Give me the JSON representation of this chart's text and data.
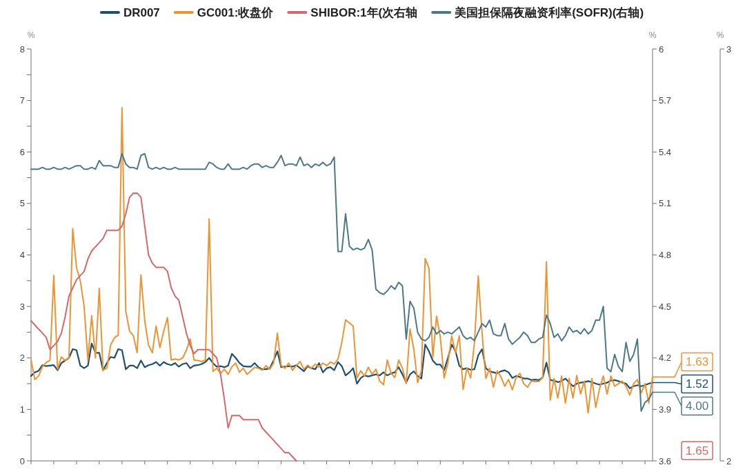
{
  "chart_data": {
    "type": "line",
    "legend": "top",
    "categories": [
      null,
      null,
      null,
      null,
      null,
      null,
      null,
      null,
      null,
      null,
      null,
      null,
      null,
      null,
      null,
      null,
      null,
      null,
      null,
      null,
      null,
      null,
      null,
      null,
      null,
      null,
      null,
      null,
      null,
      null,
      null,
      null,
      null,
      null,
      null,
      null,
      null,
      null,
      null,
      null,
      null,
      null,
      null,
      null,
      null,
      null,
      null,
      null,
      null,
      null,
      null,
      null,
      null,
      null,
      null,
      null,
      null,
      null,
      null,
      null,
      null,
      null,
      null,
      null,
      null,
      null,
      null,
      null,
      null,
      null,
      null,
      null,
      null,
      null,
      null,
      null,
      null,
      null,
      null,
      null,
      null,
      null,
      null,
      null,
      null,
      null,
      null,
      null,
      null,
      null,
      null,
      null,
      null,
      null,
      null,
      null,
      null,
      null,
      null,
      null,
      null,
      null,
      null,
      null,
      null,
      null,
      null,
      null,
      null,
      null,
      null,
      null,
      null,
      null,
      null,
      null,
      null,
      null,
      null,
      null,
      null,
      null,
      null,
      null,
      null,
      null,
      null,
      null,
      null,
      null,
      null,
      null,
      null,
      null,
      null,
      null,
      null,
      null,
      null,
      null,
      null,
      null,
      null,
      null,
      null,
      null,
      null,
      null,
      null,
      null,
      null,
      null,
      null,
      null,
      null,
      null,
      null,
      null,
      null,
      null,
      null,
      null,
      null,
      null,
      null
    ],
    "ylabel": "%",
    "y2label": "%",
    "y3label": "%",
    "ylim": [
      0,
      8
    ],
    "yticks": [
      0,
      {
        "value": 0.5,
        "label": null
      },
      1,
      {
        "value": 1.5,
        "label": null
      },
      2,
      {
        "value": 2.5,
        "label": null
      },
      3,
      {
        "value": 3.5,
        "label": null
      },
      4,
      {
        "value": 4.5,
        "label": null
      },
      5,
      {
        "value": 5.5,
        "label": null
      },
      6,
      {
        "value": 6.5,
        "label": null
      },
      7,
      {
        "value": 7.5,
        "label": null
      },
      8
    ],
    "y2lim": [
      3.6,
      6
    ],
    "y2ticks": [
      3.6,
      3.9,
      4.2,
      4.5,
      4.8,
      5.1,
      5.4,
      5.7,
      6
    ],
    "y3lim": [
      2,
      3
    ],
    "y3ticks": [
      2,
      3
    ],
    "annotations": [
      "1.65"
    ],
    "series": [
      {
        "name": "DR007",
        "color": "#1f4e6e",
        "values": [
          1.65,
          1.72,
          1.75,
          1.86,
          1.84,
          1.85,
          1.86,
          1.76,
          1.9,
          1.95,
          2.0,
          2.17,
          2.15,
          1.85,
          1.8,
          1.85,
          2.28,
          2.1,
          2.1,
          1.76,
          1.9,
          2.02,
          2.0,
          2.17,
          2.15,
          1.78,
          1.85,
          1.85,
          1.8,
          1.95,
          1.82,
          1.86,
          1.88,
          1.92,
          1.85,
          1.92,
          1.88,
          1.86,
          1.9,
          1.83,
          1.88,
          1.9,
          1.8,
          1.85,
          1.86,
          1.88,
          1.92,
          2.0,
          1.9,
          1.83,
          1.84,
          1.82,
          1.85,
          2.08,
          2.0,
          1.9,
          1.84,
          1.83,
          1.83,
          1.9,
          1.82,
          1.78,
          1.78,
          1.8,
          1.95,
          2.13,
          1.82,
          1.83,
          1.84,
          1.83,
          1.86,
          1.8,
          1.74,
          1.84,
          1.8,
          1.78,
          1.9,
          1.72,
          1.8,
          1.82,
          1.76,
          1.92,
          1.84,
          1.66,
          1.72,
          1.8,
          1.5,
          1.61,
          1.66,
          1.64,
          1.66,
          1.68,
          1.66,
          1.72,
          1.66,
          1.7,
          1.72,
          1.82,
          1.68,
          1.52,
          1.68,
          1.74,
          1.65,
          1.6,
          2.26,
          2.13,
          1.95,
          1.87,
          1.87,
          1.76,
          2.0,
          2.26,
          2.13,
          1.85,
          1.78,
          1.8,
          1.77,
          1.78,
          2.05,
          2.17,
          1.8,
          1.74,
          1.72,
          1.7,
          1.74,
          1.76,
          1.72,
          1.61,
          1.65,
          1.63,
          1.6,
          1.6,
          1.57,
          1.58,
          1.57,
          1.62,
          1.91,
          1.57,
          1.56,
          1.53,
          1.55,
          1.6,
          1.52,
          1.45,
          1.5,
          1.52,
          1.53,
          1.55,
          1.53,
          1.5,
          1.48,
          1.5,
          1.52,
          1.56,
          1.57,
          1.55,
          1.52,
          1.5,
          1.41,
          1.45,
          1.47,
          1.45,
          1.47,
          1.5,
          1.52
        ],
        "value_labels": [
          null,
          null,
          null,
          null,
          null,
          null,
          null,
          null,
          null,
          null,
          null,
          null,
          null,
          null,
          null,
          null,
          null,
          null,
          null,
          null,
          null,
          null,
          null,
          null,
          null,
          null,
          null,
          null,
          null,
          null,
          null,
          null,
          null,
          null,
          null,
          null,
          null,
          null,
          null,
          null,
          null,
          null,
          null,
          null,
          null,
          null,
          null,
          null,
          null,
          null,
          null,
          null,
          null,
          null,
          null,
          null,
          null,
          null,
          null,
          null,
          null,
          null,
          null,
          null,
          null,
          null,
          null,
          null,
          null,
          null,
          null,
          null,
          null,
          null,
          null,
          null,
          null,
          null,
          null,
          null,
          null,
          null,
          null,
          null,
          null,
          null,
          null,
          null,
          null,
          null,
          null,
          null,
          null,
          null,
          null,
          null,
          null,
          null,
          null,
          null,
          null,
          null,
          null,
          null,
          null,
          null,
          null,
          null,
          null,
          null,
          null,
          null,
          null,
          null,
          null,
          null,
          null,
          null,
          null,
          null,
          null,
          null,
          null,
          null,
          null,
          null,
          null,
          null,
          null,
          null,
          null,
          null,
          null,
          null,
          null,
          null,
          null,
          null,
          null,
          null,
          null,
          null,
          null,
          null,
          null,
          null,
          null,
          null,
          null,
          null,
          null,
          null,
          null,
          null,
          null,
          null,
          null,
          null,
          null,
          null,
          null,
          null,
          null,
          null,
          "1.52"
        ]
      },
      {
        "name": "GC001:收盘价",
        "color": "#ec9433",
        "values": [
          1.96,
          1.58,
          1.65,
          1.83,
          1.91,
          1.95,
          3.6,
          1.78,
          2.02,
          1.95,
          2.0,
          4.51,
          3.75,
          3.5,
          3.0,
          1.95,
          2.82,
          2.0,
          3.35,
          1.76,
          1.8,
          2.25,
          2.39,
          2.44,
          6.86,
          2.91,
          2.52,
          2.43,
          2.1,
          3.61,
          2.72,
          2.25,
          2.1,
          2.62,
          2.2,
          2.52,
          2.78,
          1.96,
          1.98,
          1.96,
          2.0,
          2.15,
          2.37,
          1.96,
          1.95,
          1.93,
          1.96,
          4.7,
          1.74,
          1.8,
          1.7,
          1.78,
          1.68,
          1.83,
          1.9,
          1.72,
          1.8,
          1.68,
          1.75,
          1.82,
          1.8,
          1.76,
          1.85,
          1.78,
          1.9,
          2.48,
          1.85,
          1.8,
          1.9,
          1.76,
          1.85,
          1.93,
          1.78,
          1.86,
          1.8,
          1.88,
          1.82,
          1.9,
          1.85,
          1.92,
          1.88,
          1.98,
          2.3,
          2.74,
          2.68,
          2.62,
          1.61,
          1.75,
          1.65,
          1.82,
          1.68,
          1.78,
          1.55,
          1.48,
          1.96,
          1.7,
          1.62,
          1.96,
          1.8,
          1.5,
          2.56,
          2.17,
          1.52,
          1.75,
          3.93,
          3.74,
          2.0,
          2.81,
          2.4,
          1.61,
          1.9,
          2.43,
          2.1,
          2.43,
          1.39,
          1.8,
          1.61,
          2.3,
          3.59,
          2.5,
          1.6,
          1.8,
          1.43,
          1.75,
          1.63,
          1.45,
          1.58,
          1.38,
          1.62,
          1.7,
          1.5,
          1.43,
          1.55,
          1.54,
          1.54,
          1.62,
          3.87,
          1.18,
          1.6,
          1.22,
          1.65,
          1.12,
          1.6,
          1.22,
          1.66,
          1.3,
          1.55,
          0.93,
          1.6,
          1.04,
          1.4,
          1.65,
          1.3,
          1.65,
          1.45,
          1.5,
          1.55,
          1.45,
          1.28,
          1.5,
          1.58,
          1.32,
          1.5,
          1.12,
          1.63
        ],
        "value_labels": [
          null,
          null,
          null,
          null,
          null,
          null,
          null,
          null,
          null,
          null,
          null,
          null,
          null,
          null,
          null,
          null,
          null,
          null,
          null,
          null,
          null,
          null,
          null,
          null,
          null,
          null,
          null,
          null,
          null,
          null,
          null,
          null,
          null,
          null,
          null,
          null,
          null,
          null,
          null,
          null,
          null,
          null,
          null,
          null,
          null,
          null,
          null,
          null,
          null,
          null,
          null,
          null,
          null,
          null,
          null,
          null,
          null,
          null,
          null,
          null,
          null,
          null,
          null,
          null,
          null,
          null,
          null,
          null,
          null,
          null,
          null,
          null,
          null,
          null,
          null,
          null,
          null,
          null,
          null,
          null,
          null,
          null,
          null,
          null,
          null,
          null,
          null,
          null,
          null,
          null,
          null,
          null,
          null,
          null,
          null,
          null,
          null,
          null,
          null,
          null,
          null,
          null,
          null,
          null,
          null,
          null,
          null,
          null,
          null,
          null,
          null,
          null,
          null,
          null,
          null,
          null,
          null,
          null,
          null,
          null,
          null,
          null,
          null,
          null,
          null,
          null,
          null,
          null,
          null,
          null,
          null,
          null,
          null,
          null,
          null,
          null,
          null,
          null,
          null,
          null,
          null,
          null,
          null,
          null,
          null,
          null,
          null,
          null,
          null,
          null,
          null,
          null,
          null,
          null,
          null,
          null,
          null,
          null,
          null,
          null,
          null,
          null,
          null,
          null,
          "1.63"
        ]
      },
      {
        "name": "SHIBOR:1年(次右轴",
        "color": "#d4686a",
        "axis": "y3",
        "values": [
          2.34,
          2.33,
          2.32,
          2.31,
          2.3,
          2.27,
          2.28,
          2.29,
          2.31,
          2.35,
          2.4,
          2.42,
          2.44,
          2.45,
          2.46,
          2.49,
          2.51,
          2.52,
          2.53,
          2.54,
          2.56,
          2.56,
          2.56,
          2.56,
          2.57,
          2.6,
          2.64,
          2.65,
          2.65,
          2.64,
          2.57,
          2.5,
          2.48,
          2.47,
          2.47,
          2.47,
          2.46,
          2.42,
          2.4,
          2.39,
          2.35,
          2.31,
          2.28,
          2.26,
          2.27,
          2.27,
          2.27,
          2.27,
          2.26,
          2.25,
          2.21,
          2.15,
          2.08,
          2.11,
          2.11,
          2.11,
          2.1,
          2.1,
          2.1,
          2.1,
          2.1,
          2.08,
          2.07,
          2.06,
          2.05,
          2.04,
          2.03,
          2.02,
          2.02,
          2.01,
          2.0,
          null,
          null,
          null,
          null,
          null,
          null,
          null,
          null,
          null,
          null,
          null,
          null,
          null,
          null,
          null,
          null,
          null,
          null,
          null,
          null,
          null,
          null,
          null,
          null,
          null,
          null,
          null,
          null,
          null,
          null,
          null,
          null,
          null,
          null,
          null,
          null,
          null,
          null,
          null,
          null,
          null,
          null,
          null,
          null,
          null,
          null,
          null,
          null,
          null,
          null,
          null,
          null,
          null,
          null,
          null,
          null,
          null,
          null,
          null,
          null,
          null,
          null,
          null,
          null,
          null,
          null,
          null,
          null,
          null,
          null,
          null,
          null,
          null,
          null,
          null,
          null,
          null,
          null,
          null,
          null,
          null,
          null,
          null,
          null,
          null,
          null,
          null,
          null,
          null,
          null,
          null,
          null,
          null,
          null
        ]
      },
      {
        "name": "美国担保隔夜融资利率(SOFR)(右轴)",
        "color": "#4b7884",
        "axis": "y2",
        "values": [
          5.3,
          5.3,
          5.3,
          5.31,
          5.3,
          5.3,
          5.31,
          5.3,
          5.3,
          5.31,
          5.3,
          5.31,
          5.32,
          5.32,
          5.3,
          5.3,
          5.31,
          5.3,
          5.35,
          5.32,
          5.32,
          5.32,
          5.31,
          5.31,
          5.39,
          5.33,
          5.31,
          5.31,
          5.3,
          5.38,
          5.39,
          5.31,
          5.3,
          5.31,
          5.3,
          5.31,
          5.3,
          5.3,
          5.31,
          5.3,
          5.3,
          5.3,
          5.3,
          5.3,
          5.3,
          5.3,
          5.3,
          5.34,
          5.33,
          5.31,
          5.3,
          5.3,
          5.33,
          5.3,
          5.3,
          5.3,
          5.31,
          5.3,
          5.32,
          5.33,
          5.33,
          5.31,
          5.32,
          5.31,
          5.31,
          5.34,
          5.38,
          5.32,
          5.33,
          5.33,
          5.32,
          5.37,
          5.32,
          5.33,
          5.31,
          5.33,
          5.32,
          5.34,
          5.32,
          5.33,
          5.37,
          4.82,
          4.82,
          5.04,
          4.85,
          4.83,
          4.84,
          4.83,
          4.84,
          4.89,
          4.83,
          4.6,
          4.58,
          4.57,
          4.59,
          4.62,
          4.6,
          4.64,
          4.62,
          4.31,
          4.53,
          4.49,
          4.35,
          4.31,
          4.3,
          4.32,
          4.38,
          4.34,
          4.36,
          4.34,
          4.35,
          4.34,
          4.36,
          4.38,
          4.33,
          4.31,
          4.32,
          4.3,
          4.35,
          4.4,
          4.38,
          4.42,
          4.34,
          4.33,
          4.33,
          4.4,
          4.31,
          4.28,
          4.3,
          4.32,
          4.35,
          4.33,
          4.29,
          4.29,
          4.31,
          4.32,
          4.45,
          4.4,
          4.32,
          4.34,
          4.3,
          4.33,
          4.38,
          4.35,
          4.36,
          4.34,
          4.37,
          4.34,
          4.36,
          4.42,
          4.42,
          4.5,
          4.14,
          4.12,
          4.22,
          4.15,
          4.12,
          4.29,
          4.18,
          4.22,
          4.31,
          3.89,
          3.94,
          3.96,
          4.0
        ],
        "value_labels": [
          null,
          null,
          null,
          null,
          null,
          null,
          null,
          null,
          null,
          null,
          null,
          null,
          null,
          null,
          null,
          null,
          null,
          null,
          null,
          null,
          null,
          null,
          null,
          null,
          null,
          null,
          null,
          null,
          null,
          null,
          null,
          null,
          null,
          null,
          null,
          null,
          null,
          null,
          null,
          null,
          null,
          null,
          null,
          null,
          null,
          null,
          null,
          null,
          null,
          null,
          null,
          null,
          null,
          null,
          null,
          null,
          null,
          null,
          null,
          null,
          null,
          null,
          null,
          null,
          null,
          null,
          null,
          null,
          null,
          null,
          null,
          null,
          null,
          null,
          null,
          null,
          null,
          null,
          null,
          null,
          null,
          null,
          null,
          null,
          null,
          null,
          null,
          null,
          null,
          null,
          null,
          null,
          null,
          null,
          null,
          null,
          null,
          null,
          null,
          null,
          null,
          null,
          null,
          null,
          null,
          null,
          null,
          null,
          null,
          null,
          null,
          null,
          null,
          null,
          null,
          null,
          null,
          null,
          null,
          null,
          null,
          null,
          null,
          null,
          null,
          null,
          null,
          null,
          null,
          null,
          null,
          null,
          null,
          null,
          null,
          null,
          null,
          null,
          null,
          null,
          null,
          null,
          null,
          null,
          null,
          null,
          null,
          null,
          null,
          null,
          null,
          null,
          null,
          null,
          null,
          null,
          null,
          null,
          null,
          null,
          null,
          null,
          null,
          null,
          "4.00"
        ]
      }
    ]
  }
}
